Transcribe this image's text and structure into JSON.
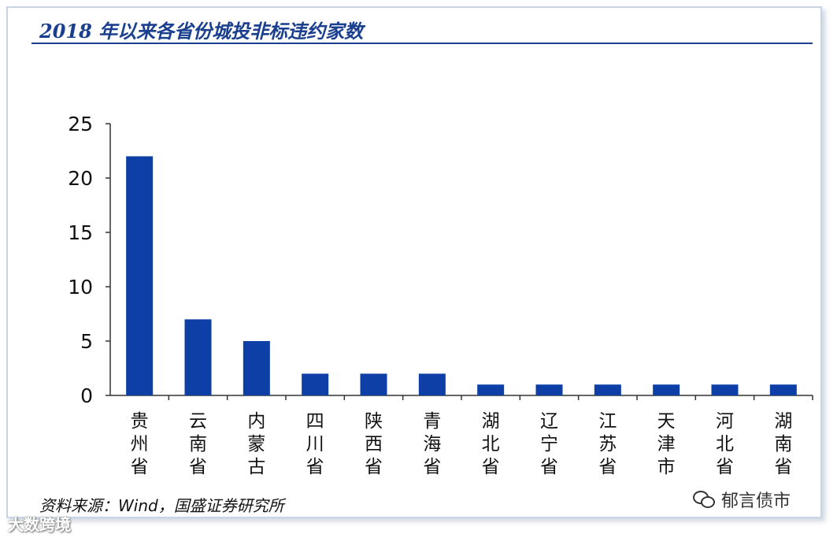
{
  "title": "2018 年以来各省份城投非标违约家数",
  "source": "资料来源：Wind，国盛证券研究所",
  "watermark_left": "大数跨境",
  "watermark_right": "郁言债市",
  "icons": {
    "watermark_right_icon": "wechat-bubble-icon",
    "watermark_left_icon": "brand-logo-icon"
  },
  "colors": {
    "bar": "#0d3fa6",
    "title": "#1a3f8f",
    "axis": "#333333"
  },
  "chart_data": {
    "type": "bar",
    "title": "2018 年以来各省份城投非标违约家数",
    "xlabel": "",
    "ylabel": "",
    "ylim": [
      0,
      25
    ],
    "yticks": [
      0,
      5,
      10,
      15,
      20,
      25
    ],
    "grid": false,
    "legend": "none",
    "categories": [
      "贵州省",
      "云南省",
      "内蒙古",
      "四川省",
      "陕西省",
      "青海省",
      "湖北省",
      "辽宁省",
      "江苏省",
      "天津市",
      "河北省",
      "湖南省"
    ],
    "values": [
      22,
      7,
      5,
      2,
      2,
      2,
      1,
      1,
      1,
      1,
      1,
      1
    ]
  }
}
